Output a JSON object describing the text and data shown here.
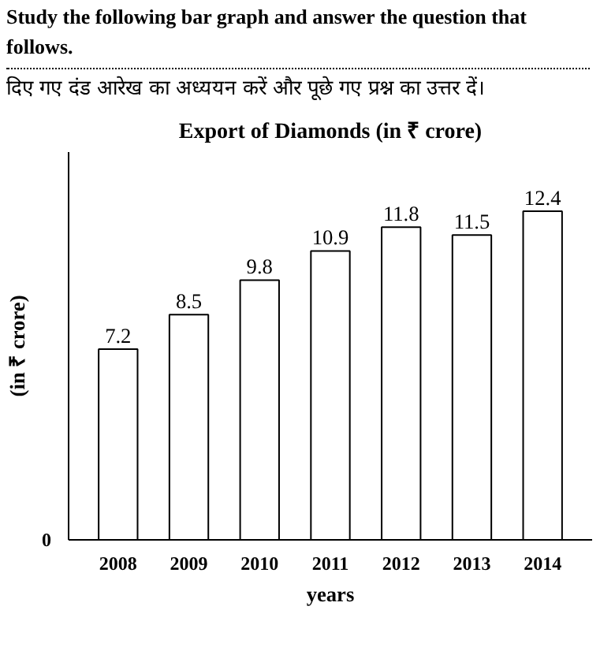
{
  "chart_data": {
    "type": "bar",
    "title": "Export of Diamonds (in ₹ crore)",
    "annotations": [
      "Study the following bar graph and answer the question that follows.",
      "दिए गए दंड आरेख का अध्ययन करें और पूछे गए प्रश्न का उत्तर दें।",
      "0"
    ],
    "categories": [
      "2008",
      "2009",
      "2010",
      "2011",
      "2012",
      "2013",
      "2014"
    ],
    "values": [
      7.2,
      8.5,
      9.8,
      10.9,
      11.8,
      11.5,
      12.4
    ],
    "color": "#ffffff",
    "xlabel": "years",
    "ylabel": "(in ₹ crore)",
    "data_labels": true,
    "grid": false
  }
}
